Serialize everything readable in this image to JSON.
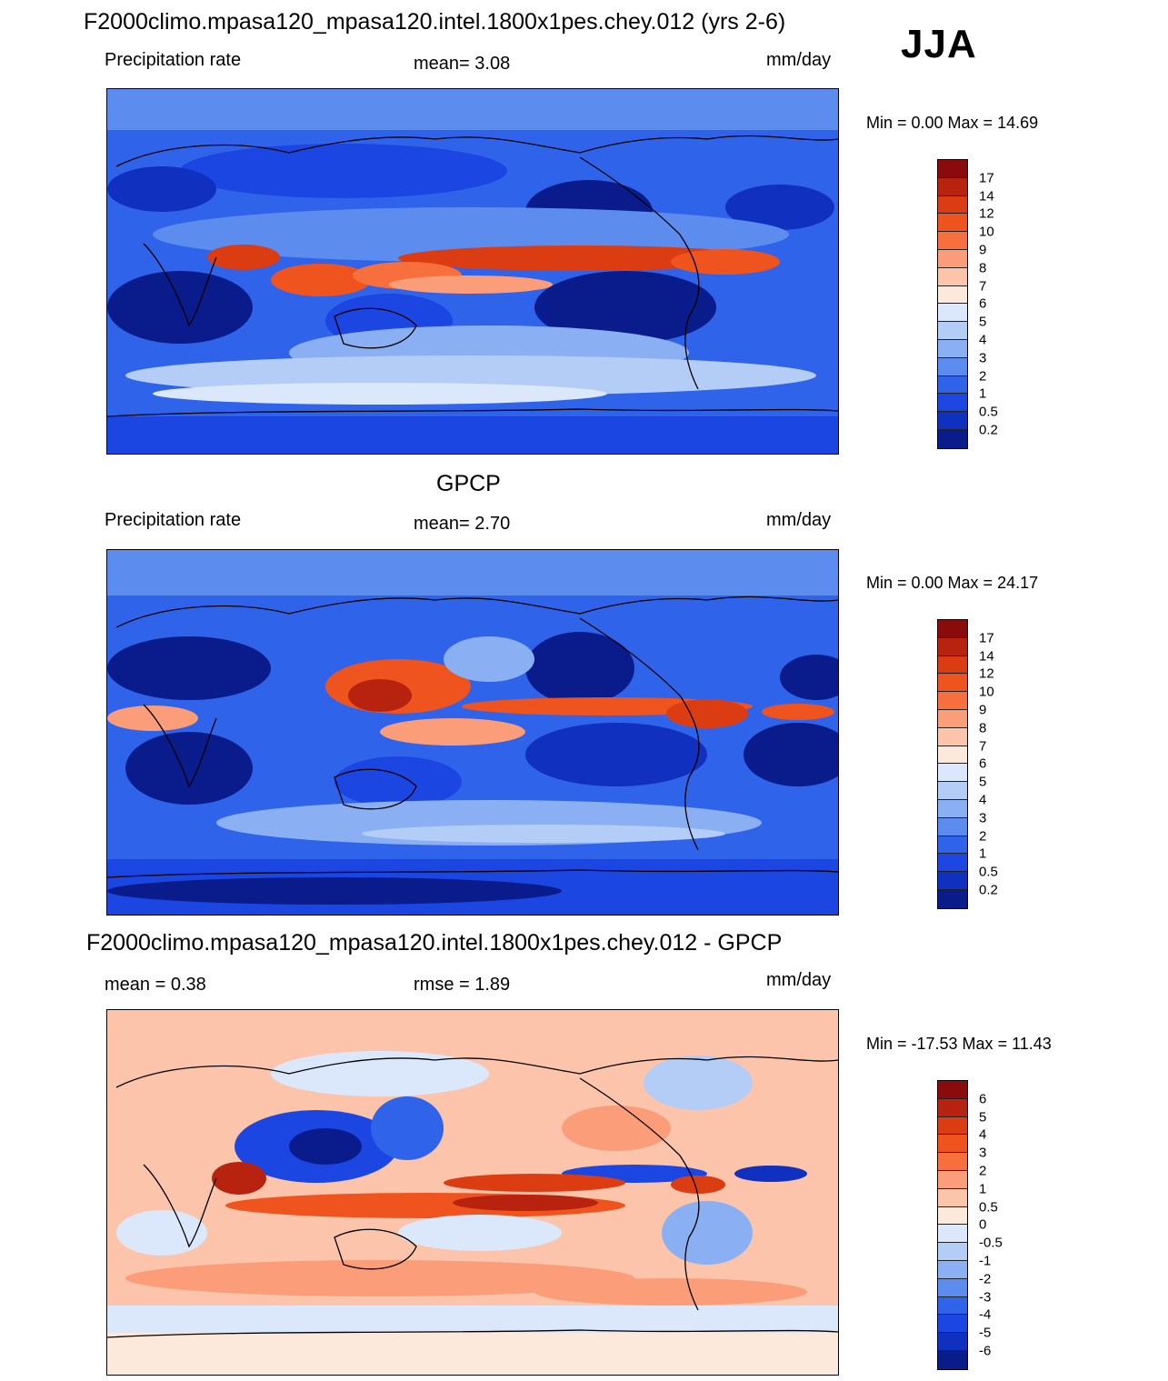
{
  "season": "JJA",
  "units": "mm/day",
  "panels": [
    {
      "title": "F2000climo.mpasa120_mpasa120.intel.1800x1pes.chey.012 (yrs 2-6)",
      "left_label": "Precipitation rate",
      "center_label": "mean=   3.08",
      "right_label": "mm/day",
      "minmax": "Min =    0.00 Max =  14.69",
      "palette": "precip"
    },
    {
      "title": "GPCP",
      "left_label": "Precipitation rate",
      "center_label": "mean=   2.70",
      "right_label": "mm/day",
      "minmax": "Min =    0.00 Max =  24.17",
      "palette": "precip"
    },
    {
      "title": "F2000climo.mpasa120_mpasa120.intel.1800x1pes.chey.012 - GPCP",
      "left_label": "mean =    0.38",
      "center_label": "rmse =    1.89",
      "right_label": "mm/day",
      "minmax": "Min = -17.53 Max =  11.43",
      "palette": "diff"
    }
  ],
  "colorbars": {
    "precip": {
      "levels": [
        "17",
        "14",
        "12",
        "10",
        "9",
        "8",
        "7",
        "6",
        "5",
        "4",
        "3",
        "2",
        "1",
        "0.5",
        "0.2"
      ],
      "colors": [
        "#8a0b0b",
        "#b7230f",
        "#dc3c12",
        "#f0541e",
        "#f76f3c",
        "#fa9d78",
        "#fbc4ab",
        "#fde8dc",
        "#dbe8fb",
        "#b4cdf7",
        "#8ab0f3",
        "#5b8cee",
        "#2f64ea",
        "#1c46e1",
        "#1030bf",
        "#0a1c8c"
      ]
    },
    "diff": {
      "levels": [
        "6",
        "5",
        "4",
        "3",
        "2",
        "1",
        "0.5",
        "0",
        "-0.5",
        "-1",
        "-2",
        "-3",
        "-4",
        "-5",
        "-6"
      ],
      "colors": [
        "#8a0b0b",
        "#b7230f",
        "#dc3c12",
        "#f0541e",
        "#f76f3c",
        "#fa9d78",
        "#fbc4ab",
        "#fde8dc",
        "#dbe8fb",
        "#b4cdf7",
        "#8ab0f3",
        "#5b8cee",
        "#2f64ea",
        "#1c46e1",
        "#1030bf",
        "#0a1c8c"
      ]
    }
  }
}
